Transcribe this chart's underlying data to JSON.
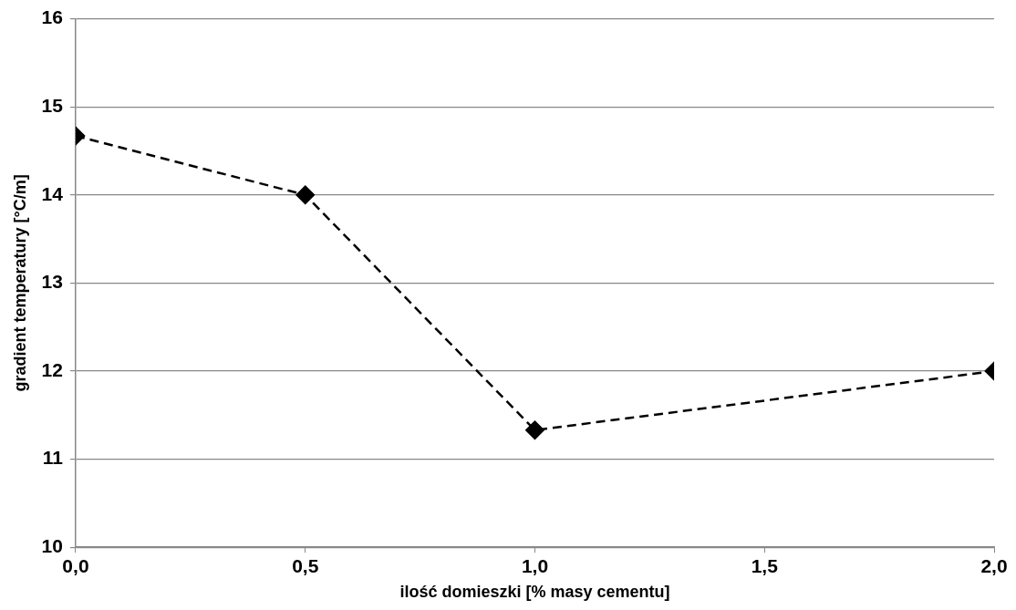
{
  "chart_data": {
    "type": "line",
    "xlabel": "ilość domieszki [% masy cementu]",
    "ylabel": "gradient temperatury [°C/m]",
    "x": [
      0,
      0.5,
      1.0,
      2.0
    ],
    "series": [
      {
        "color": "#000000",
        "values": [
          14.67,
          14.0,
          11.33,
          12.0
        ]
      }
    ],
    "xlim": [
      0,
      2
    ],
    "xticks": [
      {
        "value": 0,
        "label": "0,0"
      },
      {
        "value": 0.5,
        "label": "0,5"
      },
      {
        "value": 1,
        "label": "1,0"
      },
      {
        "value": 1.5,
        "label": "1,5"
      },
      {
        "value": 2,
        "label": "2,0"
      }
    ],
    "ylim": [
      10,
      16
    ],
    "yticks": [
      10,
      11,
      12,
      13,
      14,
      15,
      16
    ],
    "grid": "y",
    "legend": false,
    "marker": "diamond",
    "line_style": "dashed"
  }
}
